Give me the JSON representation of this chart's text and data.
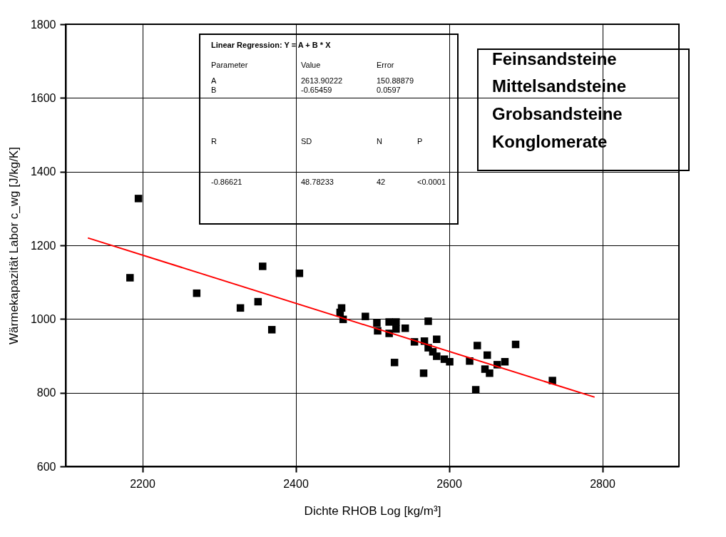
{
  "chart_data": {
    "type": "scatter",
    "xlabel": "Dichte RHOB Log  [kg/m³]",
    "ylabel": "Wärmekapazität Labor  c_wg  [J/kg/K]",
    "xlim": [
      2100,
      2900
    ],
    "xticks": [
      2200,
      2400,
      2600,
      2800
    ],
    "ylim": [
      600,
      1800
    ],
    "yticks": [
      600,
      800,
      1000,
      1200,
      1400,
      1600,
      1800
    ],
    "grid": true,
    "series": [
      {
        "type": "scatter",
        "color": "#000000",
        "marker": "square",
        "x": [
          2195,
          2184,
          2271,
          2328,
          2351,
          2357,
          2369,
          2405,
          2460,
          2458,
          2462,
          2491,
          2506,
          2507,
          2522,
          2531,
          2522,
          2531,
          2543,
          2529,
          2555,
          2568,
          2573,
          2584,
          2573,
          2579,
          2584,
          2594,
          2601,
          2567,
          2627,
          2637,
          2635,
          2650,
          2647,
          2653,
          2663,
          2673,
          2687,
          2735
        ],
        "values": [
          1327,
          1112,
          1070,
          1030,
          1047,
          1143,
          971,
          1124,
          1030,
          1018,
          999,
          1007,
          989,
          968,
          992,
          992,
          961,
          973,
          975,
          882,
          938,
          940,
          994,
          945,
          922,
          911,
          899,
          891,
          884,
          853,
          886,
          928,
          808,
          902,
          864,
          853,
          876,
          884,
          931,
          833
        ]
      },
      {
        "type": "line",
        "color": "#ff0000",
        "x": [
          2129,
          2790
        ],
        "values": [
          1220,
          788
        ]
      }
    ],
    "annotations": [
      "Linear Regression:   Y = A + B * X",
      "Parameter",
      "Value",
      "Error",
      "A",
      "2613.90222",
      "150.88879",
      "B",
      "-0.65459",
      "0.0597",
      "R",
      "SD",
      "N",
      "P",
      "-0.86621",
      "48.78233",
      "42",
      "<0.0001",
      "Feinsandsteine",
      "Mittelsandsteine",
      "Grobsandsteine",
      "Konglomerate"
    ]
  }
}
